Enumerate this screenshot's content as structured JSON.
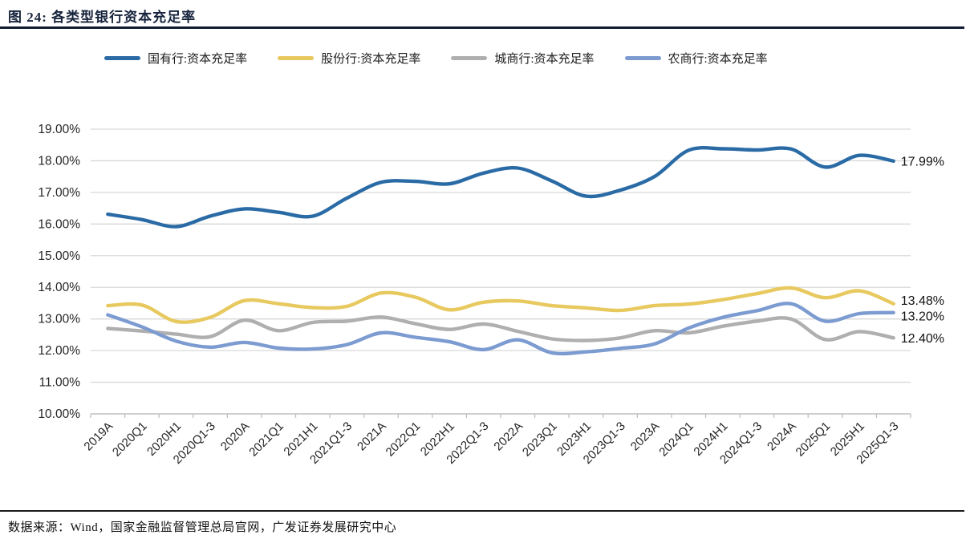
{
  "figure": {
    "title": "图 24:  各类型银行资本充足率",
    "source": "数据来源：Wind，国家金融监督管理总局官网，广发证券发展研究中心"
  },
  "chart_data": {
    "type": "line",
    "title": "各类型银行资本充足率",
    "xlabel": "",
    "ylabel": "",
    "ylim": [
      10,
      19
    ],
    "ytick_step": 1,
    "yticks": [
      "19.00%",
      "18.00%",
      "17.00%",
      "16.00%",
      "15.00%",
      "14.00%",
      "13.00%",
      "12.00%",
      "11.00%",
      "10.00%"
    ],
    "grid": "horizontal",
    "legend_position": "top",
    "categories": [
      "2019A",
      "2020Q1",
      "2020H1",
      "2020Q1-3",
      "2020A",
      "2021Q1",
      "2021H1",
      "2021Q1-3",
      "2021A",
      "2022Q1",
      "2022H1",
      "2022Q1-3",
      "2022A",
      "2023Q1",
      "2023H1",
      "2023Q1-3",
      "2023A",
      "2024Q1",
      "2024H1",
      "2024Q1-3",
      "2024A",
      "2025Q1",
      "2025H1",
      "2025Q1-3"
    ],
    "series": [
      {
        "name": "国有行:资本充足率",
        "color": "#2A6BA6",
        "end_label": "17.99%",
        "end_label_offset": 0,
        "values": [
          16.31,
          16.14,
          15.92,
          16.25,
          16.48,
          16.37,
          16.25,
          16.82,
          17.32,
          17.35,
          17.27,
          17.61,
          17.77,
          17.36,
          16.88,
          17.07,
          17.5,
          18.33,
          18.38,
          18.34,
          18.37,
          17.8,
          18.17,
          17.99
        ]
      },
      {
        "name": "股份行:资本充足率",
        "color": "#E8C95F",
        "end_label": "13.48%",
        "end_label_offset": -4,
        "values": [
          13.42,
          13.44,
          12.92,
          13.05,
          13.58,
          13.48,
          13.36,
          13.4,
          13.82,
          13.69,
          13.29,
          13.53,
          13.57,
          13.42,
          13.35,
          13.27,
          13.42,
          13.47,
          13.61,
          13.8,
          13.98,
          13.67,
          13.89,
          13.48
        ]
      },
      {
        "name": "城商行:资本充足率",
        "color": "#AFAFAF",
        "end_label": "12.40%",
        "end_label_offset": 0,
        "values": [
          12.7,
          12.62,
          12.52,
          12.44,
          12.96,
          12.63,
          12.89,
          12.93,
          13.06,
          12.85,
          12.67,
          12.84,
          12.61,
          12.37,
          12.32,
          12.4,
          12.63,
          12.56,
          12.77,
          12.93,
          13.0,
          12.35,
          12.6,
          12.4
        ]
      },
      {
        "name": "农商行:资本充足率",
        "color": "#7C9BD1",
        "end_label": "13.20%",
        "end_label_offset": 4,
        "values": [
          13.13,
          12.75,
          12.3,
          12.11,
          12.26,
          12.08,
          12.05,
          12.19,
          12.56,
          12.42,
          12.28,
          12.03,
          12.34,
          11.93,
          11.96,
          12.07,
          12.21,
          12.71,
          13.05,
          13.26,
          13.48,
          12.93,
          13.17,
          13.2
        ]
      }
    ],
    "colors": {
      "gridline": "#D9D9D9",
      "axis": "#BFBFBF",
      "tick_text": "#262626",
      "end_label_text": "#111111"
    }
  }
}
